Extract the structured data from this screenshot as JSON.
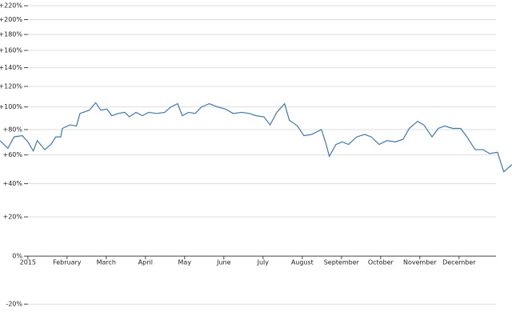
{
  "chart_data": {
    "type": "line",
    "yscale": "log",
    "grid": true,
    "xlim": [
      -0.71,
      12.35
    ],
    "ylim": [
      -22,
      225
    ],
    "xticks": [
      {
        "value": 0,
        "label": "2015"
      },
      {
        "value": 1,
        "label": "February"
      },
      {
        "value": 2,
        "label": "March"
      },
      {
        "value": 3,
        "label": "April"
      },
      {
        "value": 4,
        "label": "May"
      },
      {
        "value": 5,
        "label": "June"
      },
      {
        "value": 6,
        "label": "July"
      },
      {
        "value": 7,
        "label": "August"
      },
      {
        "value": 8,
        "label": "September"
      },
      {
        "value": 9,
        "label": "October"
      },
      {
        "value": 10,
        "label": "November"
      },
      {
        "value": 11,
        "label": "December"
      }
    ],
    "yticks": [
      {
        "value": 220,
        "label": "+220%"
      },
      {
        "value": 200,
        "label": "+200%"
      },
      {
        "value": 180,
        "label": "+180%"
      },
      {
        "value": 160,
        "label": "+160%"
      },
      {
        "value": 140,
        "label": "+140%"
      },
      {
        "value": 120,
        "label": "+120%"
      },
      {
        "value": 100,
        "label": "+100%"
      },
      {
        "value": 80,
        "label": "+80%"
      },
      {
        "value": 60,
        "label": "+60%"
      },
      {
        "value": 40,
        "label": "+40%"
      },
      {
        "value": 20,
        "label": "+20%"
      },
      {
        "value": 0,
        "label": "0%"
      },
      {
        "value": -20,
        "label": "-20%"
      }
    ],
    "x": [
      -0.71,
      -0.51,
      -0.35,
      -0.14,
      0,
      0.14,
      0.24,
      0.43,
      0.59,
      0.71,
      0.84,
      0.88,
      1.08,
      1.24,
      1.33,
      1.57,
      1.73,
      1.86,
      2.02,
      2.14,
      2.31,
      2.47,
      2.59,
      2.76,
      2.92,
      3.08,
      3.29,
      3.49,
      3.65,
      3.82,
      3.94,
      4.1,
      4.27,
      4.43,
      4.63,
      4.84,
      5.04,
      5.24,
      5.45,
      5.65,
      5.82,
      6.02,
      6.18,
      6.35,
      6.55,
      6.67,
      6.88,
      7.04,
      7.24,
      7.49,
      7.61,
      7.69,
      7.86,
      8.02,
      8.18,
      8.39,
      8.59,
      8.76,
      8.96,
      9.16,
      9.37,
      9.57,
      9.73,
      9.94,
      10.1,
      10.31,
      10.47,
      10.63,
      10.84,
      11.04,
      11.2,
      11.41,
      11.61,
      11.78,
      11.98,
      12.14,
      12.35
    ],
    "series": [
      {
        "color": "#3b78b5",
        "values": [
          71,
          65,
          74,
          75,
          70,
          63,
          71,
          64,
          68,
          74,
          74,
          81,
          84,
          83,
          94,
          97,
          104,
          97,
          98,
          92,
          94,
          95,
          91,
          95,
          92,
          95,
          94,
          95,
          100,
          103,
          92,
          95,
          94,
          100,
          103,
          100,
          98,
          94,
          95,
          94,
          92,
          91,
          84,
          95,
          103,
          88,
          83,
          75,
          76,
          80,
          68,
          59,
          68,
          70,
          68,
          74,
          76,
          74,
          68,
          71,
          70,
          72,
          81,
          87,
          84,
          74,
          81,
          83,
          81,
          81,
          74,
          64,
          64,
          61,
          62,
          48,
          53
        ]
      }
    ]
  }
}
